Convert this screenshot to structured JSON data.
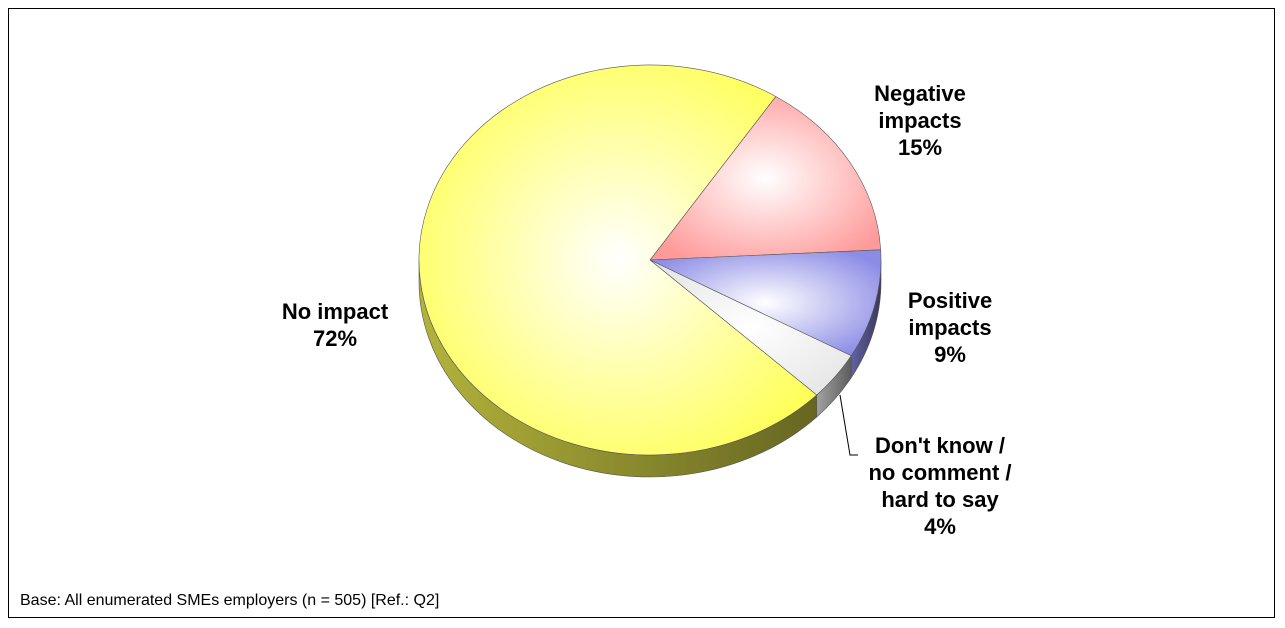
{
  "chart_data": {
    "type": "pie",
    "categories": [
      "Negative impacts",
      "Positive impacts",
      "Don't know / no comment / hard to say",
      "No impact"
    ],
    "values": [
      15,
      9,
      4,
      72
    ],
    "value_labels": [
      "15%",
      "9%",
      "4%",
      "72%"
    ],
    "colors": [
      "#ff9a9a",
      "#8c8ce6",
      "#e6e6e6",
      "#ffff55"
    ],
    "note": "Base: All enumerated SMEs employers (n = 505) [Ref.: Q2]"
  }
}
